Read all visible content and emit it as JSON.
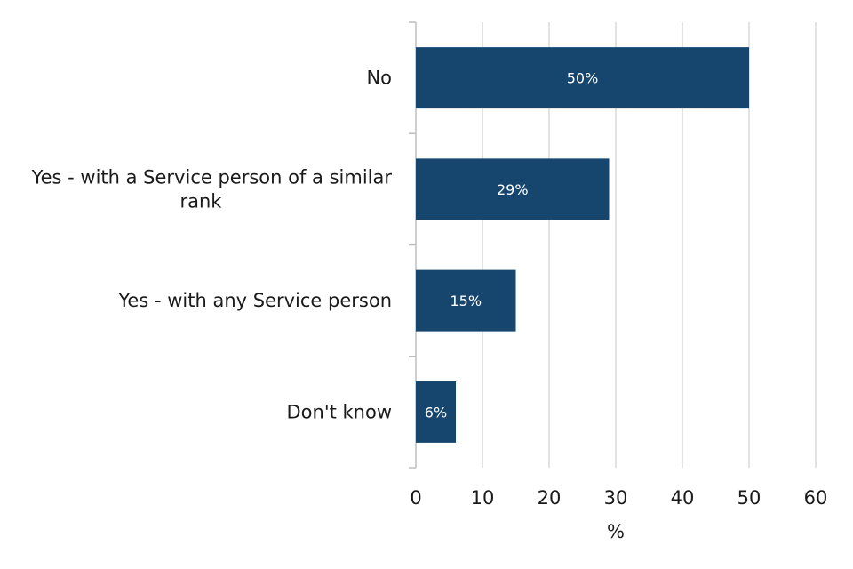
{
  "chart_data": {
    "type": "bar",
    "orientation": "horizontal",
    "title": "",
    "xlabel": "%",
    "ylabel": "",
    "categories": [
      [
        "No"
      ],
      [
        "Yes - with a Service person of a similar",
        "rank"
      ],
      [
        "Yes - with any Service person"
      ],
      [
        "Don't know"
      ]
    ],
    "values": [
      50,
      29,
      15,
      6
    ],
    "data_labels": [
      "50%",
      "29%",
      "15%",
      "6%"
    ],
    "xlim": [
      0,
      60
    ],
    "xticks": [
      0,
      10,
      20,
      30,
      40,
      50,
      60
    ],
    "xtick_labels": [
      "0",
      "10",
      "20",
      "30",
      "40",
      "50",
      "60"
    ],
    "grid": true,
    "legend": "none",
    "colors": {
      "bar": "#16456e",
      "grid": "#d9d9d9",
      "axis": "#bfbfbf",
      "text": "#1a1a1a",
      "data_label": "#ffffff"
    }
  }
}
